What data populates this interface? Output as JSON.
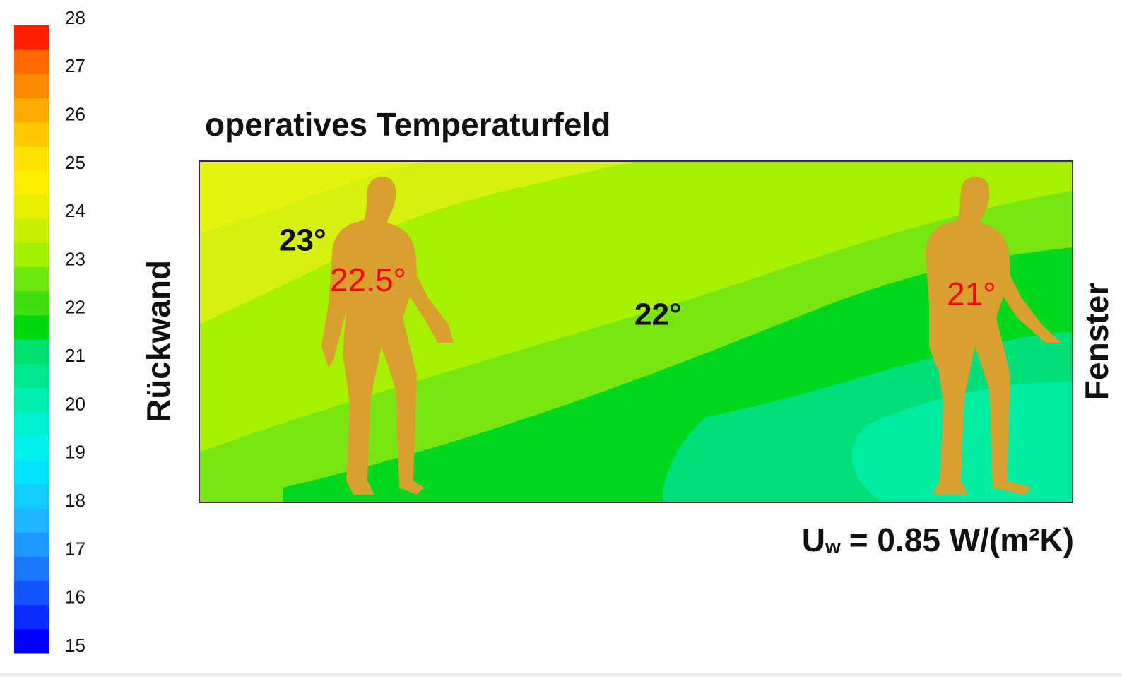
{
  "title": "operatives Temperaturfeld",
  "left_label": "Rückwand",
  "right_label": "Fenster",
  "annotations": [
    "23°",
    "22°"
  ],
  "person_labels": [
    "22.5°",
    "21°"
  ],
  "formula": {
    "symbol": "U",
    "subscript": "w",
    "rest": "= 0.85 W/(m²K)"
  },
  "colorbar": {
    "range": [
      15,
      28
    ],
    "ticks": [
      28,
      27,
      26,
      25,
      24,
      23,
      22,
      21,
      20,
      19,
      18,
      17,
      16,
      15
    ],
    "colors": [
      "#0000ff",
      "#0a2cff",
      "#1254ff",
      "#1a78ff",
      "#1e98ff",
      "#1eb4ff",
      "#14ccff",
      "#00e4ff",
      "#00f2ee",
      "#00f2d0",
      "#00eeb0",
      "#00e890",
      "#00e070",
      "#00d810",
      "#40e010",
      "#70e810",
      "#a0f000",
      "#c8f000",
      "#e8f000",
      "#fff000",
      "#ffe000",
      "#ffc800",
      "#ffaa00",
      "#ff8c00",
      "#ff6a00",
      "#ff2000"
    ]
  }
}
